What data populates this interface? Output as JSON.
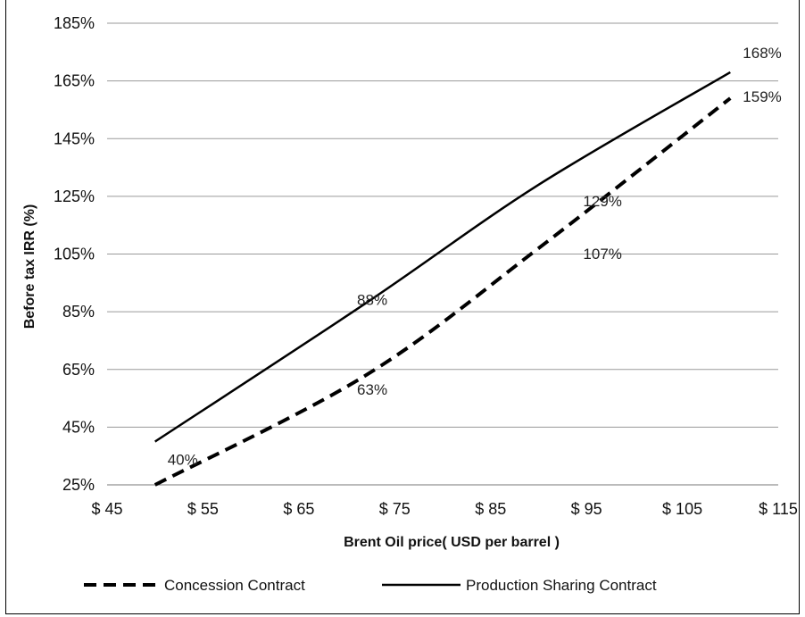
{
  "chart_data": {
    "type": "line",
    "xlabel": "Brent Oil price( USD per barrel )",
    "ylabel": "Before tax IRR (%)",
    "x_ticks": [
      "$ 45",
      "$ 55",
      "$ 65",
      "$ 75",
      "$ 85",
      "$ 95",
      "$ 105",
      "$ 115"
    ],
    "x_tick_values": [
      45,
      55,
      65,
      75,
      85,
      95,
      105,
      115
    ],
    "y_ticks": [
      "25%",
      "45%",
      "65%",
      "85%",
      "105%",
      "125%",
      "145%",
      "165%",
      "185%"
    ],
    "y_tick_values": [
      25,
      45,
      65,
      85,
      105,
      125,
      145,
      165,
      185
    ],
    "xlim": [
      45,
      115
    ],
    "ylim": [
      25,
      185
    ],
    "grid": "horizontal",
    "legend_position": "bottom",
    "series": [
      {
        "name": "Concession Contract",
        "style": "dashed",
        "color": "#000000",
        "x": [
          50,
          72,
          90,
          110
        ],
        "y": [
          25,
          63,
          107,
          159
        ],
        "labels": [
          "",
          "63%",
          "107%",
          "159%"
        ]
      },
      {
        "name": "Production Sharing Contract",
        "style": "solid",
        "color": "#000000",
        "x": [
          50,
          72,
          90,
          110
        ],
        "y": [
          40,
          88,
          129,
          168
        ],
        "labels": [
          "40%",
          "88%",
          "129%",
          "168%"
        ]
      }
    ]
  }
}
